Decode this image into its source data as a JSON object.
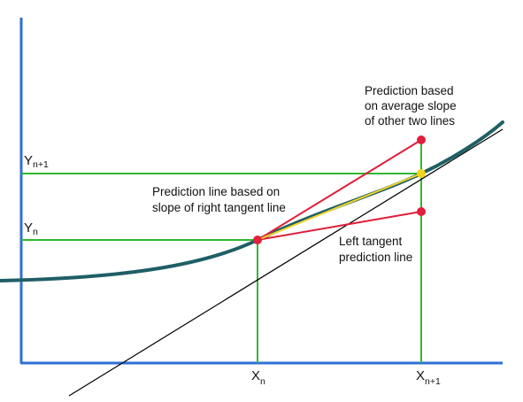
{
  "diagram": {
    "labels": {
      "y_n": "Y",
      "y_n_sub": "n",
      "y_n1": "Y",
      "y_n1_sub": "n+1",
      "x_n": "X",
      "x_n_sub": "n",
      "x_n1": "X",
      "x_n1_sub": "n+1"
    },
    "annotations": {
      "average_slope": [
        "Prediction based",
        "on average slope",
        "of other two lines"
      ],
      "right_tangent": [
        "Prediction line based on",
        "slope of right tangent line"
      ],
      "left_tangent": [
        "Left tangent",
        "prediction line"
      ]
    },
    "colors": {
      "axis": "#2f6fd6",
      "guide": "#2fb82f",
      "curve": "#1f5f66",
      "prediction": "#e0203c",
      "average": "#f2d42a",
      "tangent": "#000000",
      "point": "#e0203c",
      "average_point": "#f5d21c"
    }
  }
}
